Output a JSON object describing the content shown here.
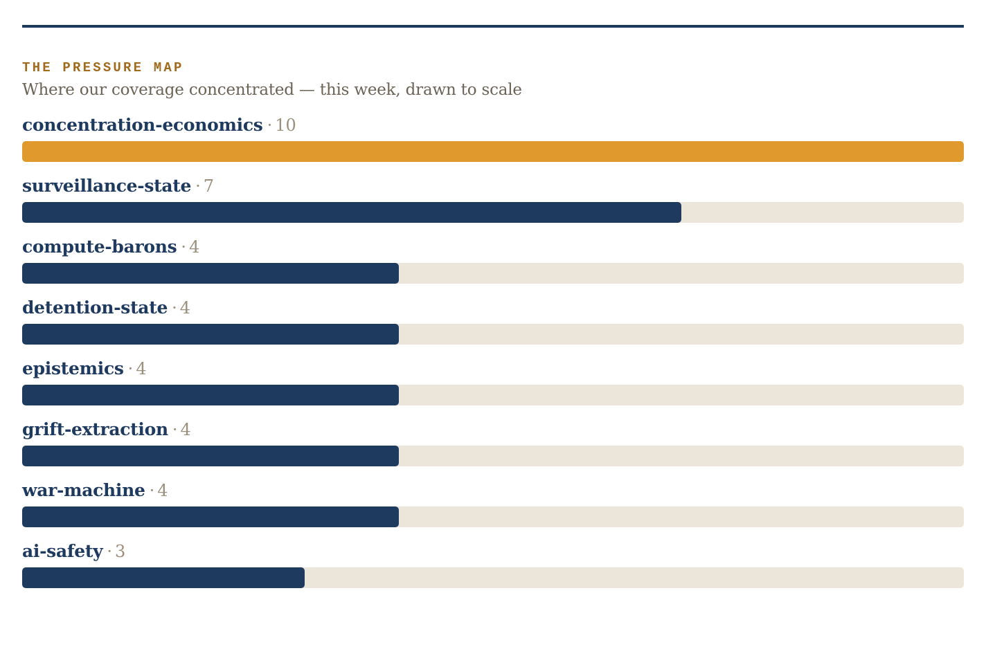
{
  "kicker": "THE PRESSURE MAP",
  "subtitle": "Where our coverage concentrated — this week, drawn to scale",
  "colors": {
    "rule": "#1f3a5f",
    "primary_bar": "#1f3a5f",
    "highlight_bar": "#e0992c",
    "track": "#ece5da",
    "kicker": "#a06b1c",
    "label": "#1f3a5f",
    "value": "#9a8f7b"
  },
  "chart_data": {
    "type": "bar",
    "orientation": "horizontal",
    "title": "THE PRESSURE MAP",
    "subtitle": "Where our coverage concentrated — this week, drawn to scale",
    "categories": [
      "concentration-economics",
      "surveillance-state",
      "compute-barons",
      "detention-state",
      "epistemics",
      "grift-extraction",
      "war-machine",
      "ai-safety"
    ],
    "values": [
      10,
      7,
      4,
      4,
      4,
      4,
      4,
      3
    ],
    "separator": "·",
    "xlim": [
      0,
      10
    ],
    "highlight_index": 0,
    "grid": false,
    "legend": "none"
  }
}
